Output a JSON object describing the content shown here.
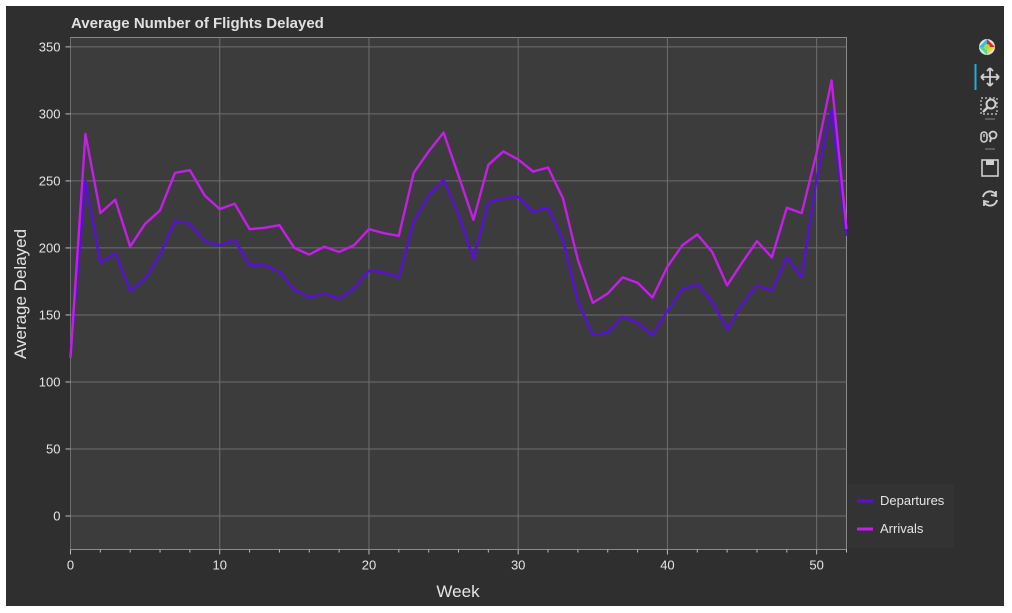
{
  "chart_data": {
    "type": "line",
    "title": "Average Number of Flights Delayed",
    "xlabel": "Week",
    "ylabel": "Average Delayed",
    "xlim": [
      0,
      52
    ],
    "ylim": [
      -25,
      357
    ],
    "x_ticks": [
      "0",
      "10",
      "20",
      "30",
      "40",
      "50"
    ],
    "y_ticks": [
      "0",
      "50",
      "100",
      "150",
      "200",
      "250",
      "300",
      "350"
    ],
    "x": [
      0,
      1,
      2,
      3,
      4,
      5,
      6,
      7,
      8,
      9,
      10,
      11,
      12,
      13,
      14,
      15,
      16,
      17,
      18,
      19,
      20,
      21,
      22,
      23,
      24,
      25,
      26,
      27,
      28,
      29,
      30,
      31,
      32,
      33,
      34,
      35,
      36,
      37,
      38,
      39,
      40,
      41,
      42,
      43,
      44,
      45,
      46,
      47,
      48,
      49,
      50,
      51,
      52
    ],
    "series": [
      {
        "name": "Departures",
        "color": "#5a0fd9",
        "values": [
          120,
          250,
          189,
          196,
          168,
          177,
          195,
          220,
          218,
          205,
          202,
          206,
          187,
          187,
          182,
          169,
          163,
          166,
          162,
          170,
          183,
          182,
          178,
          220,
          239,
          251,
          225,
          192,
          234,
          237,
          238,
          227,
          230,
          206,
          160,
          135,
          137,
          149,
          144,
          135,
          153,
          169,
          173,
          160,
          139,
          158,
          172,
          168,
          193,
          178,
          252,
          303,
          209
        ]
      },
      {
        "name": "Arrivals",
        "color": "#c41ee8",
        "values": [
          118,
          285,
          226,
          236,
          201,
          218,
          228,
          256,
          258,
          239,
          229,
          233,
          214,
          215,
          217,
          200,
          195,
          201,
          197,
          202,
          214,
          211,
          209,
          256,
          272,
          286,
          254,
          221,
          262,
          272,
          266,
          257,
          260,
          237,
          191,
          159,
          166,
          178,
          174,
          163,
          186,
          202,
          210,
          197,
          172,
          189,
          205,
          193,
          230,
          226,
          271,
          325,
          214
        ]
      }
    ],
    "legend": {
      "position": "bottom-right",
      "entries": [
        "Departures",
        "Arrivals"
      ]
    },
    "grid": true
  },
  "toolbar": {
    "icons": [
      "bokeh-logo-icon",
      "pan-icon",
      "box-zoom-icon",
      "wheel-zoom-icon",
      "save-icon",
      "reset-icon"
    ]
  }
}
